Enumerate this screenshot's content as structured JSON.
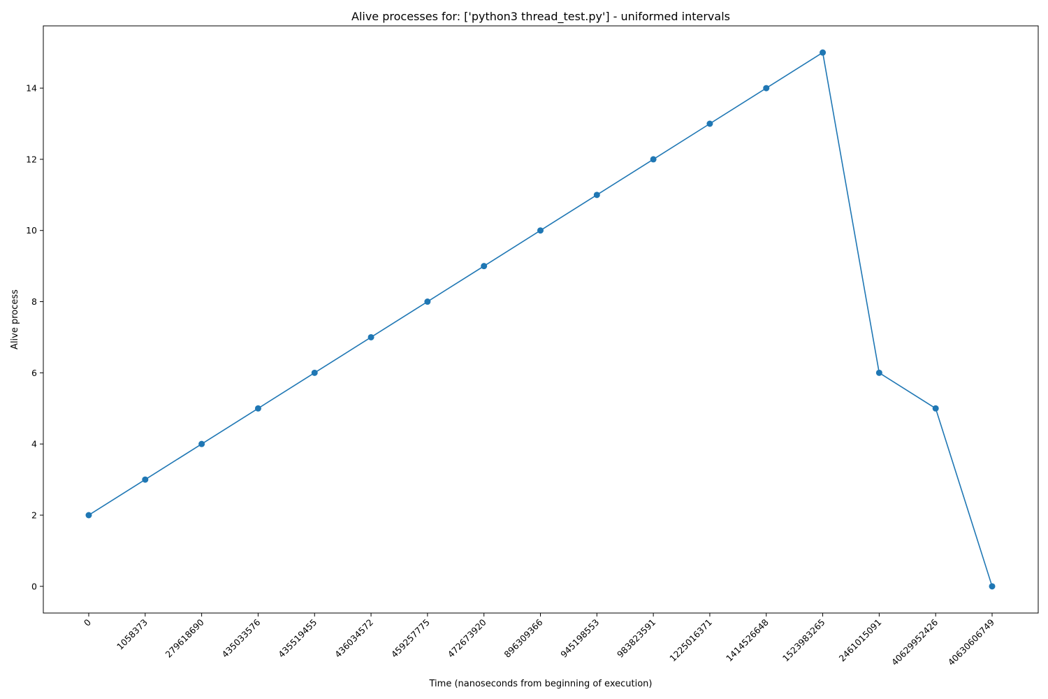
{
  "chart_data": {
    "type": "line",
    "title": "Alive processes for: ['python3 thread_test.py'] - uniformed intervals",
    "xlabel": "Time (nanoseconds from beginning of execution)",
    "ylabel": "Alive process",
    "categories": [
      "0",
      "1058373",
      "279618690",
      "435033576",
      "435519455",
      "436034572",
      "459257775",
      "472673920",
      "896309366",
      "945198553",
      "983823591",
      "1225016371",
      "1414526648",
      "1523983265",
      "2461015091",
      "40629952426",
      "40630606749"
    ],
    "series": [
      {
        "values": [
          2,
          3,
          4,
          5,
          6,
          7,
          8,
          9,
          10,
          11,
          12,
          13,
          14,
          15,
          6,
          5,
          0
        ]
      }
    ],
    "yticks": [
      0,
      2,
      4,
      6,
      8,
      10,
      12,
      14
    ],
    "ylim": [
      -0.75,
      15.75
    ],
    "grid": false,
    "markers": true,
    "line_color": "#1f77b4",
    "x_tick_rotation": 45
  }
}
